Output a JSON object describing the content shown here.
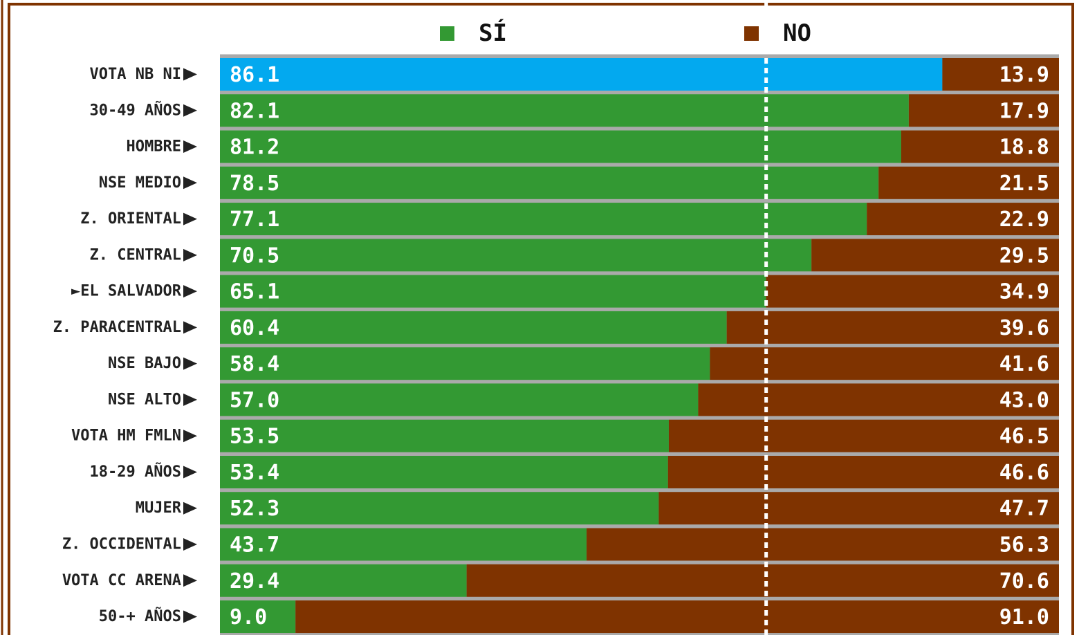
{
  "chart_data": {
    "type": "stacked_bar_horizontal",
    "categories": [
      "VOTA NB NI",
      "30-49 AÑOS",
      "HOMBRE",
      "NSE MEDIO",
      "Z. ORIENTAL",
      "Z. CENTRAL",
      "►EL SALVADOR",
      "Z. PARACENTRAL",
      "NSE BAJO",
      "NSE ALTO",
      "VOTA HM FMLN",
      "18-29 AÑOS",
      "MUJER",
      "Z. OCCIDENTAL",
      "VOTA CC ARENA",
      "50-+ AÑOS"
    ],
    "series": [
      {
        "name": "SÍ",
        "color": "#339933",
        "values": [
          86.1,
          82.1,
          81.2,
          78.5,
          77.1,
          70.5,
          65.1,
          60.4,
          58.4,
          57.0,
          53.5,
          53.4,
          52.3,
          43.7,
          29.4,
          9.0
        ],
        "value_labels": [
          "86.1",
          "82.1",
          "81.2",
          "78.5",
          "77.1",
          "70.5",
          "65.1",
          "60.4",
          "58.4",
          "57.0",
          "53.5",
          "53.4",
          "52.3",
          "43.7",
          "29.4",
          "9.0"
        ]
      },
      {
        "name": "NO",
        "color": "#7f3300",
        "values": [
          13.9,
          17.9,
          18.8,
          21.5,
          22.9,
          29.5,
          34.9,
          39.6,
          41.6,
          43.0,
          46.5,
          46.6,
          47.7,
          56.3,
          70.6,
          91.0
        ],
        "value_labels": [
          "13.9",
          "17.9",
          "18.8",
          "21.5",
          "22.9",
          "29.5",
          "34.9",
          "39.6",
          "41.6",
          "43.0",
          "46.5",
          "46.6",
          "47.7",
          "56.3",
          "70.6",
          "91.0"
        ]
      }
    ],
    "highlight": {
      "index": 0,
      "color": "#03a9ef"
    },
    "reference_line": 65.1,
    "xlim": [
      0,
      100
    ]
  }
}
